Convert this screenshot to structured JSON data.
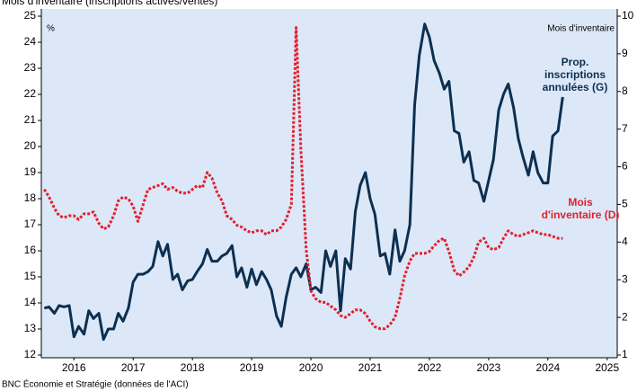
{
  "chart_data": {
    "type": "line",
    "title": "Mois d'inventaire (inscriptions actives/ventes)",
    "source": "BNC Économie et Stratégie (données de l'ACI)",
    "y_unit": "%",
    "y2_label": "Mois d'inventaire",
    "x": [
      2016,
      2016.08,
      2016.17,
      2016.25,
      2016.33,
      2016.42,
      2016.5,
      2016.58,
      2016.67,
      2016.75,
      2016.83,
      2016.92,
      2017,
      2017.08,
      2017.17,
      2017.25,
      2017.33,
      2017.42,
      2017.5,
      2017.58,
      2017.67,
      2017.75,
      2017.83,
      2017.92,
      2018,
      2018.08,
      2018.17,
      2018.25,
      2018.33,
      2018.42,
      2018.5,
      2018.58,
      2018.67,
      2018.75,
      2018.83,
      2018.92,
      2019,
      2019.08,
      2019.17,
      2019.25,
      2019.33,
      2019.42,
      2019.5,
      2019.58,
      2019.67,
      2019.75,
      2019.83,
      2019.92,
      2020,
      2020.08,
      2020.17,
      2020.25,
      2020.33,
      2020.42,
      2020.5,
      2020.58,
      2020.67,
      2020.75,
      2020.83,
      2020.92,
      2021,
      2021.08,
      2021.17,
      2021.25,
      2021.33,
      2021.42,
      2021.5,
      2021.58,
      2021.67,
      2021.75,
      2021.83,
      2021.92,
      2022,
      2022.08,
      2022.17,
      2022.25,
      2022.33,
      2022.42,
      2022.5,
      2022.58,
      2022.67,
      2022.75,
      2022.83,
      2022.92,
      2023,
      2023.08,
      2023.17,
      2023.25,
      2023.33,
      2023.42,
      2023.5,
      2023.58,
      2023.67,
      2023.75,
      2023.83,
      2023.92,
      2024,
      2024.08,
      2024.17,
      2024.25,
      2024.33,
      2024.42,
      2024.5,
      2024.58,
      2024.67,
      2024.75
    ],
    "series": [
      {
        "name": "Prop. inscriptions annulées (G)",
        "color": "#0d2f50",
        "axis": "y",
        "values": [
          13.8,
          13.85,
          13.6,
          13.9,
          13.85,
          13.9,
          12.7,
          13.1,
          12.8,
          13.7,
          13.4,
          13.6,
          12.6,
          13.0,
          13.0,
          13.6,
          13.3,
          13.8,
          14.8,
          15.1,
          15.1,
          15.2,
          15.4,
          16.35,
          15.8,
          16.25,
          14.9,
          15.1,
          14.5,
          14.85,
          14.9,
          15.2,
          15.5,
          16.05,
          15.6,
          15.6,
          15.8,
          15.9,
          16.2,
          15.0,
          15.35,
          14.6,
          15.3,
          14.7,
          15.2,
          14.9,
          14.5,
          13.5,
          13.1,
          14.2,
          15.1,
          15.35,
          15.0,
          15.5,
          14.5,
          14.6,
          14.4,
          16.0,
          15.4,
          16.0,
          13.7,
          15.7,
          15.3,
          17.5,
          18.5,
          19.0,
          18.0,
          17.4,
          15.8,
          15.9,
          15.1,
          16.8,
          15.6,
          16.0,
          17.0,
          21.6,
          23.5,
          24.7,
          24.2,
          23.3,
          22.8,
          22.2,
          22.5,
          20.6,
          20.5,
          19.4,
          19.8,
          18.7,
          18.6,
          17.9,
          18.7,
          19.5,
          21.4,
          22.0,
          22.4,
          21.5,
          20.3,
          19.6,
          18.9,
          19.8,
          19.0,
          18.6,
          18.6,
          20.4,
          20.6,
          21.9
        ]
      },
      {
        "name": "Mois d'inventaire (D)",
        "color": "#e3202e",
        "axis": "y2",
        "values": [
          5.4,
          5.2,
          4.9,
          4.7,
          4.65,
          4.7,
          4.7,
          4.6,
          4.75,
          4.75,
          4.8,
          4.5,
          4.35,
          4.4,
          4.7,
          5.1,
          5.2,
          5.15,
          4.95,
          4.55,
          5.0,
          5.4,
          5.45,
          5.5,
          5.55,
          5.4,
          5.45,
          5.35,
          5.3,
          5.3,
          5.4,
          5.5,
          5.45,
          5.85,
          5.7,
          5.3,
          5.1,
          4.7,
          4.6,
          4.45,
          4.4,
          4.3,
          4.25,
          4.3,
          4.3,
          4.2,
          4.3,
          4.3,
          4.4,
          4.6,
          5.0,
          9.7,
          6.5,
          3.8,
          2.7,
          2.5,
          2.4,
          2.4,
          2.3,
          2.2,
          2.05,
          2.0,
          2.1,
          2.2,
          2.2,
          2.1,
          1.9,
          1.75,
          1.7,
          1.7,
          1.8,
          2.0,
          2.5,
          3.1,
          3.5,
          3.7,
          3.7,
          3.7,
          3.75,
          3.9,
          4.05,
          4.1,
          3.75,
          3.25,
          3.1,
          3.2,
          3.35,
          3.6,
          4.0,
          4.1,
          3.85,
          3.8,
          3.85,
          4.1,
          4.3,
          4.2,
          4.15,
          4.2,
          4.25,
          4.3,
          4.25,
          4.2,
          4.2,
          4.15,
          4.1,
          4.1
        ]
      }
    ],
    "xlim": [
      2015.95,
      2025.67
    ],
    "xticks": [
      {
        "value": 2016.5,
        "label": "2016"
      },
      {
        "value": 2017.5,
        "label": "2017"
      },
      {
        "value": 2018.5,
        "label": "2018"
      },
      {
        "value": 2019.5,
        "label": "2019"
      },
      {
        "value": 2020.5,
        "label": "2020"
      },
      {
        "value": 2021.5,
        "label": "2021"
      },
      {
        "value": 2022.5,
        "label": "2022"
      },
      {
        "value": 2023.5,
        "label": "2023"
      },
      {
        "value": 2024.5,
        "label": "2024"
      },
      {
        "value": 2025.5,
        "label": "2025"
      }
    ],
    "ylim": [
      12,
      25
    ],
    "yticks": [
      12,
      13,
      14,
      15,
      16,
      17,
      18,
      19,
      20,
      21,
      22,
      23,
      24,
      25
    ],
    "y2lim": [
      1,
      10
    ],
    "y2ticks": [
      1,
      2,
      3,
      4,
      5,
      6,
      7,
      8,
      9,
      10
    ],
    "grid": false
  }
}
